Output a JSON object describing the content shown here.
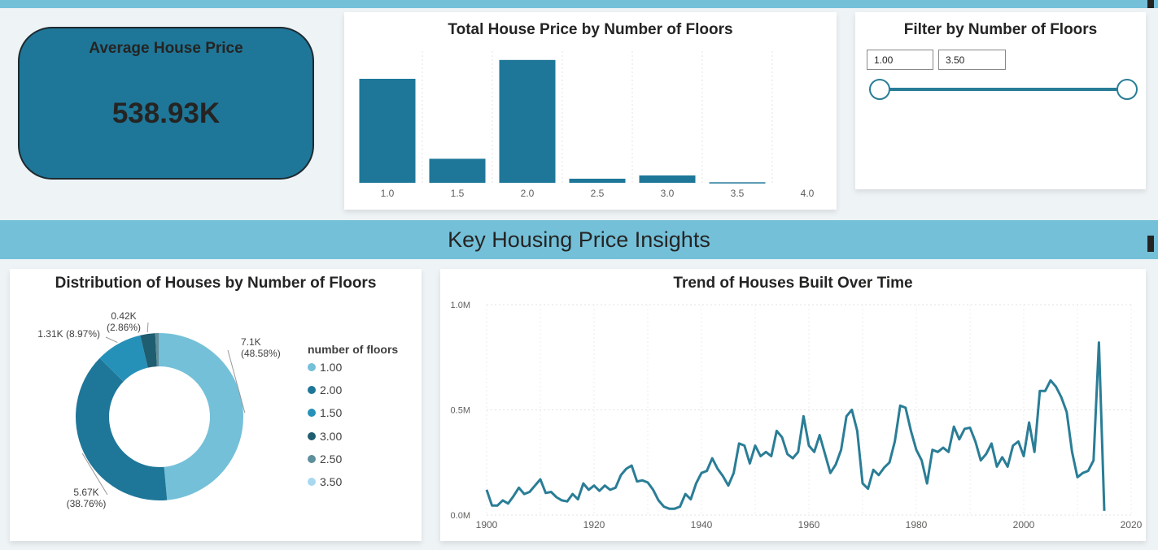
{
  "header": {
    "section_title": "Key Housing Price Insights"
  },
  "kpi": {
    "label": "Average House Price",
    "value": "538.93K"
  },
  "bar_chart_title": "Total House Price by Number of Floors",
  "filter": {
    "title": "Filter by Number of Floors",
    "min_value": "1.00",
    "max_value": "3.50",
    "range_min": 1.0,
    "range_max": 3.5,
    "selected_min": 1.0,
    "selected_max": 3.5
  },
  "donut_chart_title": "Distribution of Houses by Number of Floors",
  "line_chart_title": "Trend of Houses Built Over Time",
  "colors": {
    "accent": "#1e7799",
    "banner": "#74c0d9",
    "line": "#2a7d96"
  },
  "chart_data": [
    {
      "type": "bar",
      "title": "Total House Price by Number of Floors",
      "categories": [
        "1.0",
        "1.5",
        "2.0",
        "2.5",
        "3.0",
        "3.5",
        "4.0"
      ],
      "values": [
        3.81,
        0.88,
        4.5,
        0.15,
        0.27,
        0.02,
        0
      ],
      "unit": "B",
      "ylim": [
        0,
        5
      ],
      "color": "#1e7799"
    },
    {
      "type": "pie",
      "subtype": "donut",
      "title": "Distribution of Houses by Number of Floors",
      "legend_title": "number of floors",
      "slices": [
        {
          "name": "1.00",
          "value": 7100,
          "percent": 48.58,
          "label": "7.1K",
          "pct_label": "(48.58%)",
          "color": "#74c0d9"
        },
        {
          "name": "2.00",
          "value": 5670,
          "percent": 38.76,
          "label": "5.67K",
          "pct_label": "(38.76%)",
          "color": "#1e7799"
        },
        {
          "name": "1.50",
          "value": 1310,
          "percent": 8.97,
          "label": "1.31K (8.97%)",
          "pct_label": "",
          "color": "#2691b8"
        },
        {
          "name": "3.00",
          "value": 420,
          "percent": 2.86,
          "label": "0.42K",
          "pct_label": "(2.86%)",
          "color": "#1f5d70"
        },
        {
          "name": "2.50",
          "value": 110,
          "percent": 0.71,
          "label": "",
          "pct_label": "",
          "color": "#5d8f9c"
        },
        {
          "name": "3.50",
          "value": 10,
          "percent": 0.12,
          "label": "",
          "pct_label": "",
          "color": "#a8d8f0"
        }
      ]
    },
    {
      "type": "line",
      "title": "Trend of Houses Built Over Time",
      "xlim": [
        1900,
        2020
      ],
      "ylim": [
        0,
        1000000
      ],
      "x_ticks": [
        "1900",
        "1920",
        "1940",
        "1960",
        "1980",
        "2000",
        "2020"
      ],
      "y_ticks": [
        "0.0M",
        "0.5M",
        "1.0M"
      ],
      "x": [
        1900,
        1901,
        1902,
        1903,
        1904,
        1905,
        1906,
        1907,
        1908,
        1909,
        1910,
        1911,
        1912,
        1913,
        1914,
        1915,
        1916,
        1917,
        1918,
        1919,
        1920,
        1921,
        1922,
        1923,
        1924,
        1925,
        1926,
        1927,
        1928,
        1929,
        1930,
        1931,
        1932,
        1933,
        1934,
        1935,
        1936,
        1937,
        1938,
        1939,
        1940,
        1941,
        1942,
        1943,
        1944,
        1945,
        1946,
        1947,
        1948,
        1949,
        1950,
        1951,
        1952,
        1953,
        1954,
        1955,
        1956,
        1957,
        1958,
        1959,
        1960,
        1961,
        1962,
        1963,
        1964,
        1965,
        1966,
        1967,
        1968,
        1969,
        1970,
        1971,
        1972,
        1973,
        1974,
        1975,
        1976,
        1977,
        1978,
        1979,
        1980,
        1981,
        1982,
        1983,
        1984,
        1985,
        1986,
        1987,
        1988,
        1989,
        1990,
        1991,
        1992,
        1993,
        1994,
        1995,
        1996,
        1997,
        1998,
        1999,
        2000,
        2001,
        2002,
        2003,
        2004,
        2005,
        2006,
        2007,
        2008,
        2009,
        2010,
        2011,
        2012,
        2013,
        2014,
        2015
      ],
      "y": [
        120000,
        45000,
        45000,
        70000,
        55000,
        90000,
        130000,
        100000,
        110000,
        140000,
        170000,
        105000,
        110000,
        85000,
        70000,
        65000,
        100000,
        75000,
        150000,
        120000,
        140000,
        115000,
        140000,
        120000,
        130000,
        190000,
        220000,
        235000,
        160000,
        165000,
        155000,
        120000,
        70000,
        40000,
        30000,
        30000,
        40000,
        100000,
        75000,
        150000,
        200000,
        210000,
        270000,
        220000,
        185000,
        140000,
        200000,
        340000,
        330000,
        245000,
        330000,
        280000,
        300000,
        280000,
        400000,
        370000,
        290000,
        270000,
        300000,
        470000,
        330000,
        300000,
        380000,
        290000,
        200000,
        240000,
        310000,
        470000,
        500000,
        400000,
        150000,
        125000,
        215000,
        190000,
        225000,
        250000,
        350000,
        520000,
        510000,
        400000,
        310000,
        260000,
        150000,
        310000,
        300000,
        320000,
        300000,
        420000,
        360000,
        410000,
        415000,
        350000,
        260000,
        290000,
        340000,
        230000,
        275000,
        230000,
        330000,
        350000,
        280000,
        440000,
        300000,
        590000,
        590000,
        640000,
        610000,
        560000,
        490000,
        300000,
        180000,
        200000,
        210000,
        260000,
        820000,
        20000
      ]
    }
  ]
}
